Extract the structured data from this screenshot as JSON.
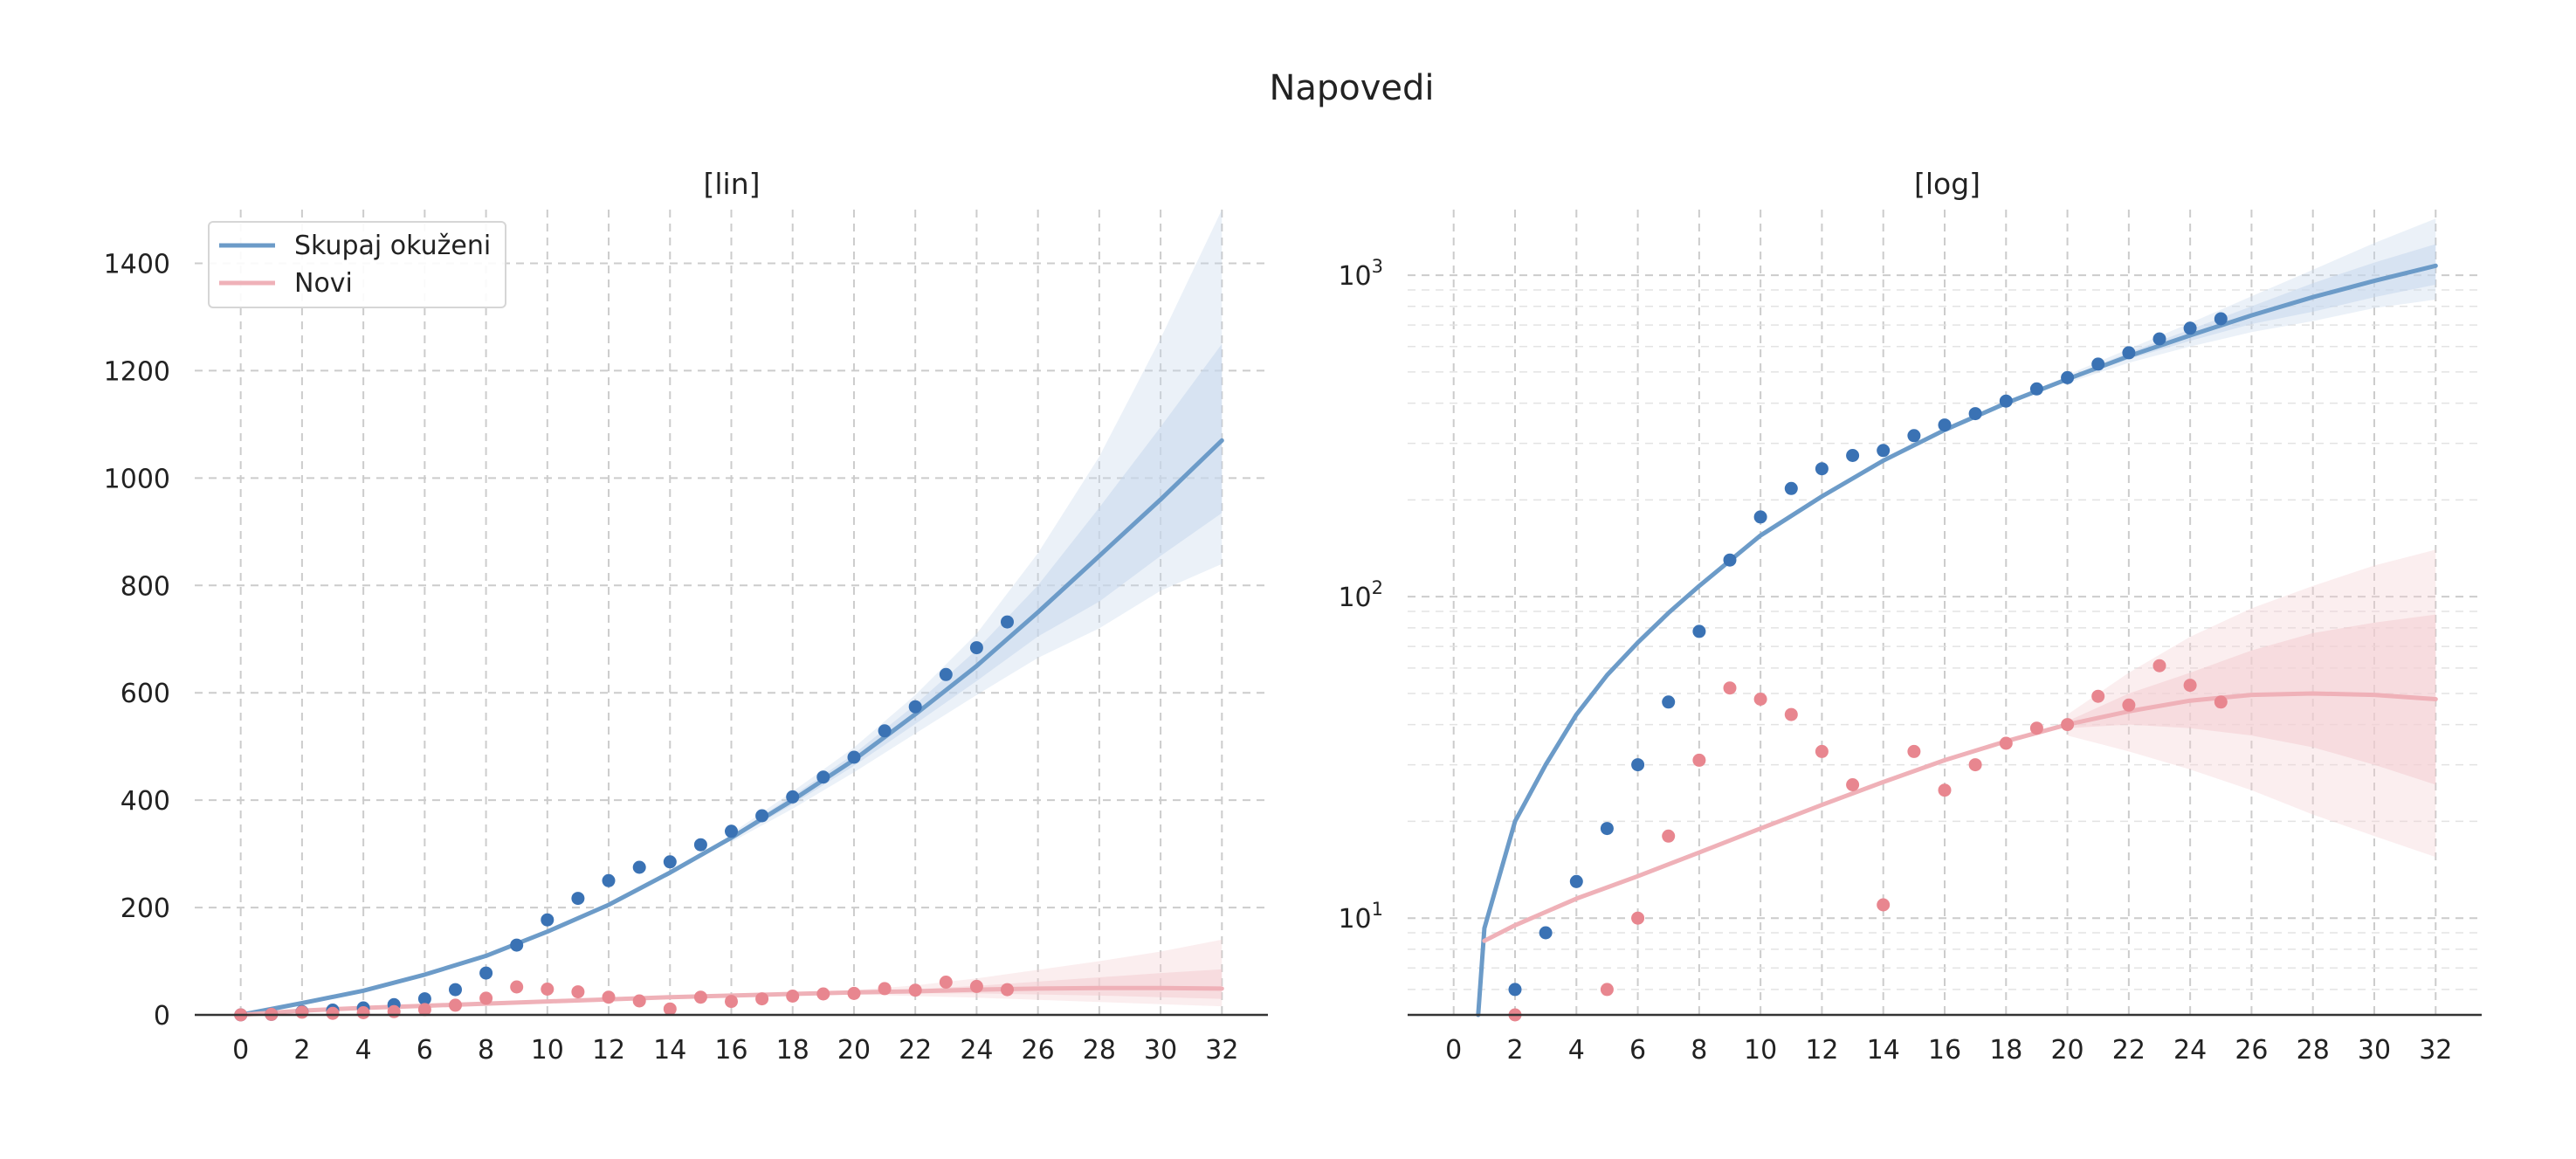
{
  "figure": {
    "title": "Napovedi",
    "colors": {
      "total_line": "#6c9bc8",
      "total_points": "#3a72b4",
      "total_band": "#c7d7ec",
      "new_line": "#efb1b8",
      "new_points": "#e8868f",
      "new_band": "#f4cdd1",
      "grid": "#cccccc",
      "axis": "#333333"
    }
  },
  "chart_data": [
    {
      "type": "line",
      "panel": "lin",
      "title": "[lin]",
      "yscale": "linear",
      "xlim": [
        -1.5,
        33.5
      ],
      "ylim": [
        0,
        1500
      ],
      "xticks": [
        0,
        2,
        4,
        6,
        8,
        10,
        12,
        14,
        16,
        18,
        20,
        22,
        24,
        26,
        28,
        30,
        32
      ],
      "yticks": [
        0,
        200,
        400,
        600,
        800,
        1000,
        1200,
        1400
      ],
      "ytick_labels": [
        "0",
        "200",
        "400",
        "600",
        "800",
        "1000",
        "1200",
        "1400"
      ],
      "grid": true,
      "legend": {
        "placement": "top-left",
        "entries": [
          "Skupaj okuženi",
          "Novi"
        ]
      },
      "series": [
        {
          "name": "Skupaj okuženi",
          "kind": "fit",
          "x": [
            0,
            2,
            4,
            6,
            8,
            10,
            12,
            14,
            16,
            18,
            20,
            22,
            24,
            26,
            28,
            30,
            32
          ],
          "y": [
            0,
            22,
            45,
            75,
            110,
            155,
            205,
            265,
            330,
            400,
            475,
            560,
            650,
            750,
            855,
            960,
            1070
          ],
          "band_inner_x": [
            16,
            18,
            20,
            22,
            24,
            26,
            28,
            30,
            32
          ],
          "band_inner_low": [
            326,
            392,
            464,
            542,
            622,
            705,
            770,
            855,
            935
          ],
          "band_inner_high": [
            334,
            408,
            486,
            578,
            680,
            800,
            945,
            1095,
            1250
          ],
          "band_outer_x": [
            16,
            18,
            20,
            22,
            24,
            26,
            28,
            30,
            32
          ],
          "band_outer_low": [
            322,
            384,
            452,
            524,
            596,
            665,
            720,
            790,
            840
          ],
          "band_outer_high": [
            338,
            416,
            498,
            596,
            710,
            860,
            1040,
            1260,
            1500
          ]
        },
        {
          "name": "Skupaj okuženi",
          "kind": "observed",
          "x": [
            0,
            1,
            2,
            3,
            4,
            5,
            6,
            7,
            8,
            9,
            10,
            11,
            12,
            13,
            14,
            15,
            16,
            17,
            18,
            19,
            20,
            21,
            22,
            23,
            24,
            25
          ],
          "y": [
            0,
            1,
            6,
            9,
            13,
            19,
            30,
            47,
            78,
            130,
            177,
            217,
            250,
            275,
            285,
            317,
            342,
            371,
            406,
            443,
            480,
            529,
            574,
            634,
            684,
            732
          ]
        },
        {
          "name": "Novi",
          "kind": "fit",
          "x": [
            0,
            2,
            4,
            6,
            8,
            10,
            12,
            14,
            16,
            18,
            20,
            22,
            24,
            26,
            28,
            30,
            32
          ],
          "y": [
            0,
            8,
            13,
            17,
            21,
            25,
            29,
            33,
            36,
            39,
            42,
            44,
            47,
            49,
            50,
            50,
            49
          ],
          "band_inner_x": [
            20,
            22,
            24,
            26,
            28,
            30,
            32
          ],
          "band_inner_low": [
            40,
            40,
            40,
            38,
            36,
            33,
            30
          ],
          "band_inner_high": [
            44,
            48,
            54,
            62,
            70,
            78,
            85
          ],
          "band_outer_x": [
            20,
            22,
            24,
            26,
            28,
            30,
            32
          ],
          "band_outer_low": [
            38,
            35,
            32,
            28,
            24,
            20,
            16
          ],
          "band_outer_high": [
            46,
            55,
            68,
            84,
            100,
            118,
            140
          ]
        },
        {
          "name": "Novi",
          "kind": "observed",
          "x": [
            0,
            1,
            2,
            3,
            4,
            5,
            6,
            7,
            8,
            9,
            10,
            11,
            12,
            13,
            14,
            15,
            16,
            17,
            18,
            19,
            20,
            21,
            22,
            23,
            24,
            25
          ],
          "y": [
            0,
            1,
            5,
            3,
            4,
            6,
            10,
            18,
            31,
            52,
            48,
            43,
            33,
            26,
            11,
            33,
            25,
            30,
            35,
            39,
            40,
            49,
            46,
            61,
            53,
            47
          ]
        }
      ]
    },
    {
      "type": "line",
      "panel": "log",
      "title": "[log]",
      "yscale": "log",
      "xlim": [
        -1.5,
        33.5
      ],
      "ylim": [
        5,
        1600
      ],
      "xticks": [
        0,
        2,
        4,
        6,
        8,
        10,
        12,
        14,
        16,
        18,
        20,
        22,
        24,
        26,
        28,
        30,
        32
      ],
      "yticks": [
        10,
        100,
        1000
      ],
      "ytick_labels": [
        "10",
        "10",
        "10"
      ],
      "ytick_exponents": [
        "1",
        "2",
        "3"
      ],
      "grid": true,
      "series": [
        {
          "name": "Skupaj okuženi",
          "kind": "fit",
          "x": [
            0.8,
            1,
            2,
            3,
            4,
            5,
            6,
            7,
            8,
            10,
            12,
            14,
            16,
            18,
            20,
            22,
            24,
            26,
            28,
            30,
            32
          ],
          "y": [
            5,
            9.3,
            20,
            30,
            43,
            57,
            72,
            89,
            108,
            155,
            205,
            265,
            330,
            400,
            475,
            560,
            650,
            750,
            855,
            960,
            1070
          ],
          "band_inner_x": [
            20,
            22,
            24,
            26,
            28,
            30,
            32
          ],
          "band_inner_low": [
            470,
            548,
            625,
            705,
            770,
            855,
            935
          ],
          "band_inner_high": [
            480,
            575,
            678,
            800,
            945,
            1095,
            1250
          ],
          "band_outer_x": [
            20,
            22,
            24,
            26,
            28,
            30,
            32
          ],
          "band_outer_low": [
            462,
            534,
            600,
            665,
            720,
            790,
            840
          ],
          "band_outer_high": [
            490,
            590,
            710,
            860,
            1040,
            1260,
            1500
          ]
        },
        {
          "name": "Skupaj okuženi",
          "kind": "observed",
          "x": [
            2,
            3,
            4,
            5,
            6,
            7,
            8,
            9,
            10,
            11,
            12,
            13,
            14,
            15,
            16,
            17,
            18,
            19,
            20,
            21,
            22,
            23,
            24,
            25
          ],
          "y": [
            6,
            9,
            13,
            19,
            30,
            47,
            78,
            130,
            177,
            217,
            250,
            275,
            285,
            317,
            342,
            371,
            406,
            443,
            480,
            529,
            574,
            634,
            684,
            732
          ]
        },
        {
          "name": "Novi",
          "kind": "fit",
          "x": [
            1,
            2,
            4,
            6,
            8,
            10,
            12,
            14,
            16,
            18,
            20,
            22,
            24,
            26,
            28,
            30,
            32
          ],
          "y": [
            8.5,
            9.5,
            11.5,
            13.5,
            16,
            19,
            22.5,
            26.5,
            31,
            35.5,
            40,
            44,
            47.5,
            49.5,
            50,
            49.5,
            48
          ],
          "band_inner_x": [
            20,
            22,
            24,
            26,
            28,
            30,
            32
          ],
          "band_inner_low": [
            39,
            40,
            39,
            37,
            34,
            30,
            26
          ],
          "band_inner_high": [
            41,
            50,
            58,
            68,
            77,
            83,
            88
          ],
          "band_outer_x": [
            20,
            22,
            24,
            26,
            28,
            30,
            32
          ],
          "band_outer_low": [
            37,
            33,
            29,
            25,
            21,
            18,
            15.5
          ],
          "band_outer_high": [
            43,
            58,
            75,
            92,
            108,
            125,
            140
          ]
        },
        {
          "name": "Novi",
          "kind": "observed",
          "x": [
            2,
            5,
            6,
            7,
            8,
            9,
            10,
            11,
            12,
            13,
            14,
            15,
            16,
            17,
            18,
            19,
            20,
            21,
            22,
            23,
            24,
            25
          ],
          "y": [
            5,
            6,
            10,
            18,
            31,
            52,
            48,
            43,
            33,
            26,
            11,
            33,
            25,
            30,
            35,
            39,
            40,
            49,
            46,
            61,
            53,
            47
          ]
        }
      ]
    }
  ]
}
